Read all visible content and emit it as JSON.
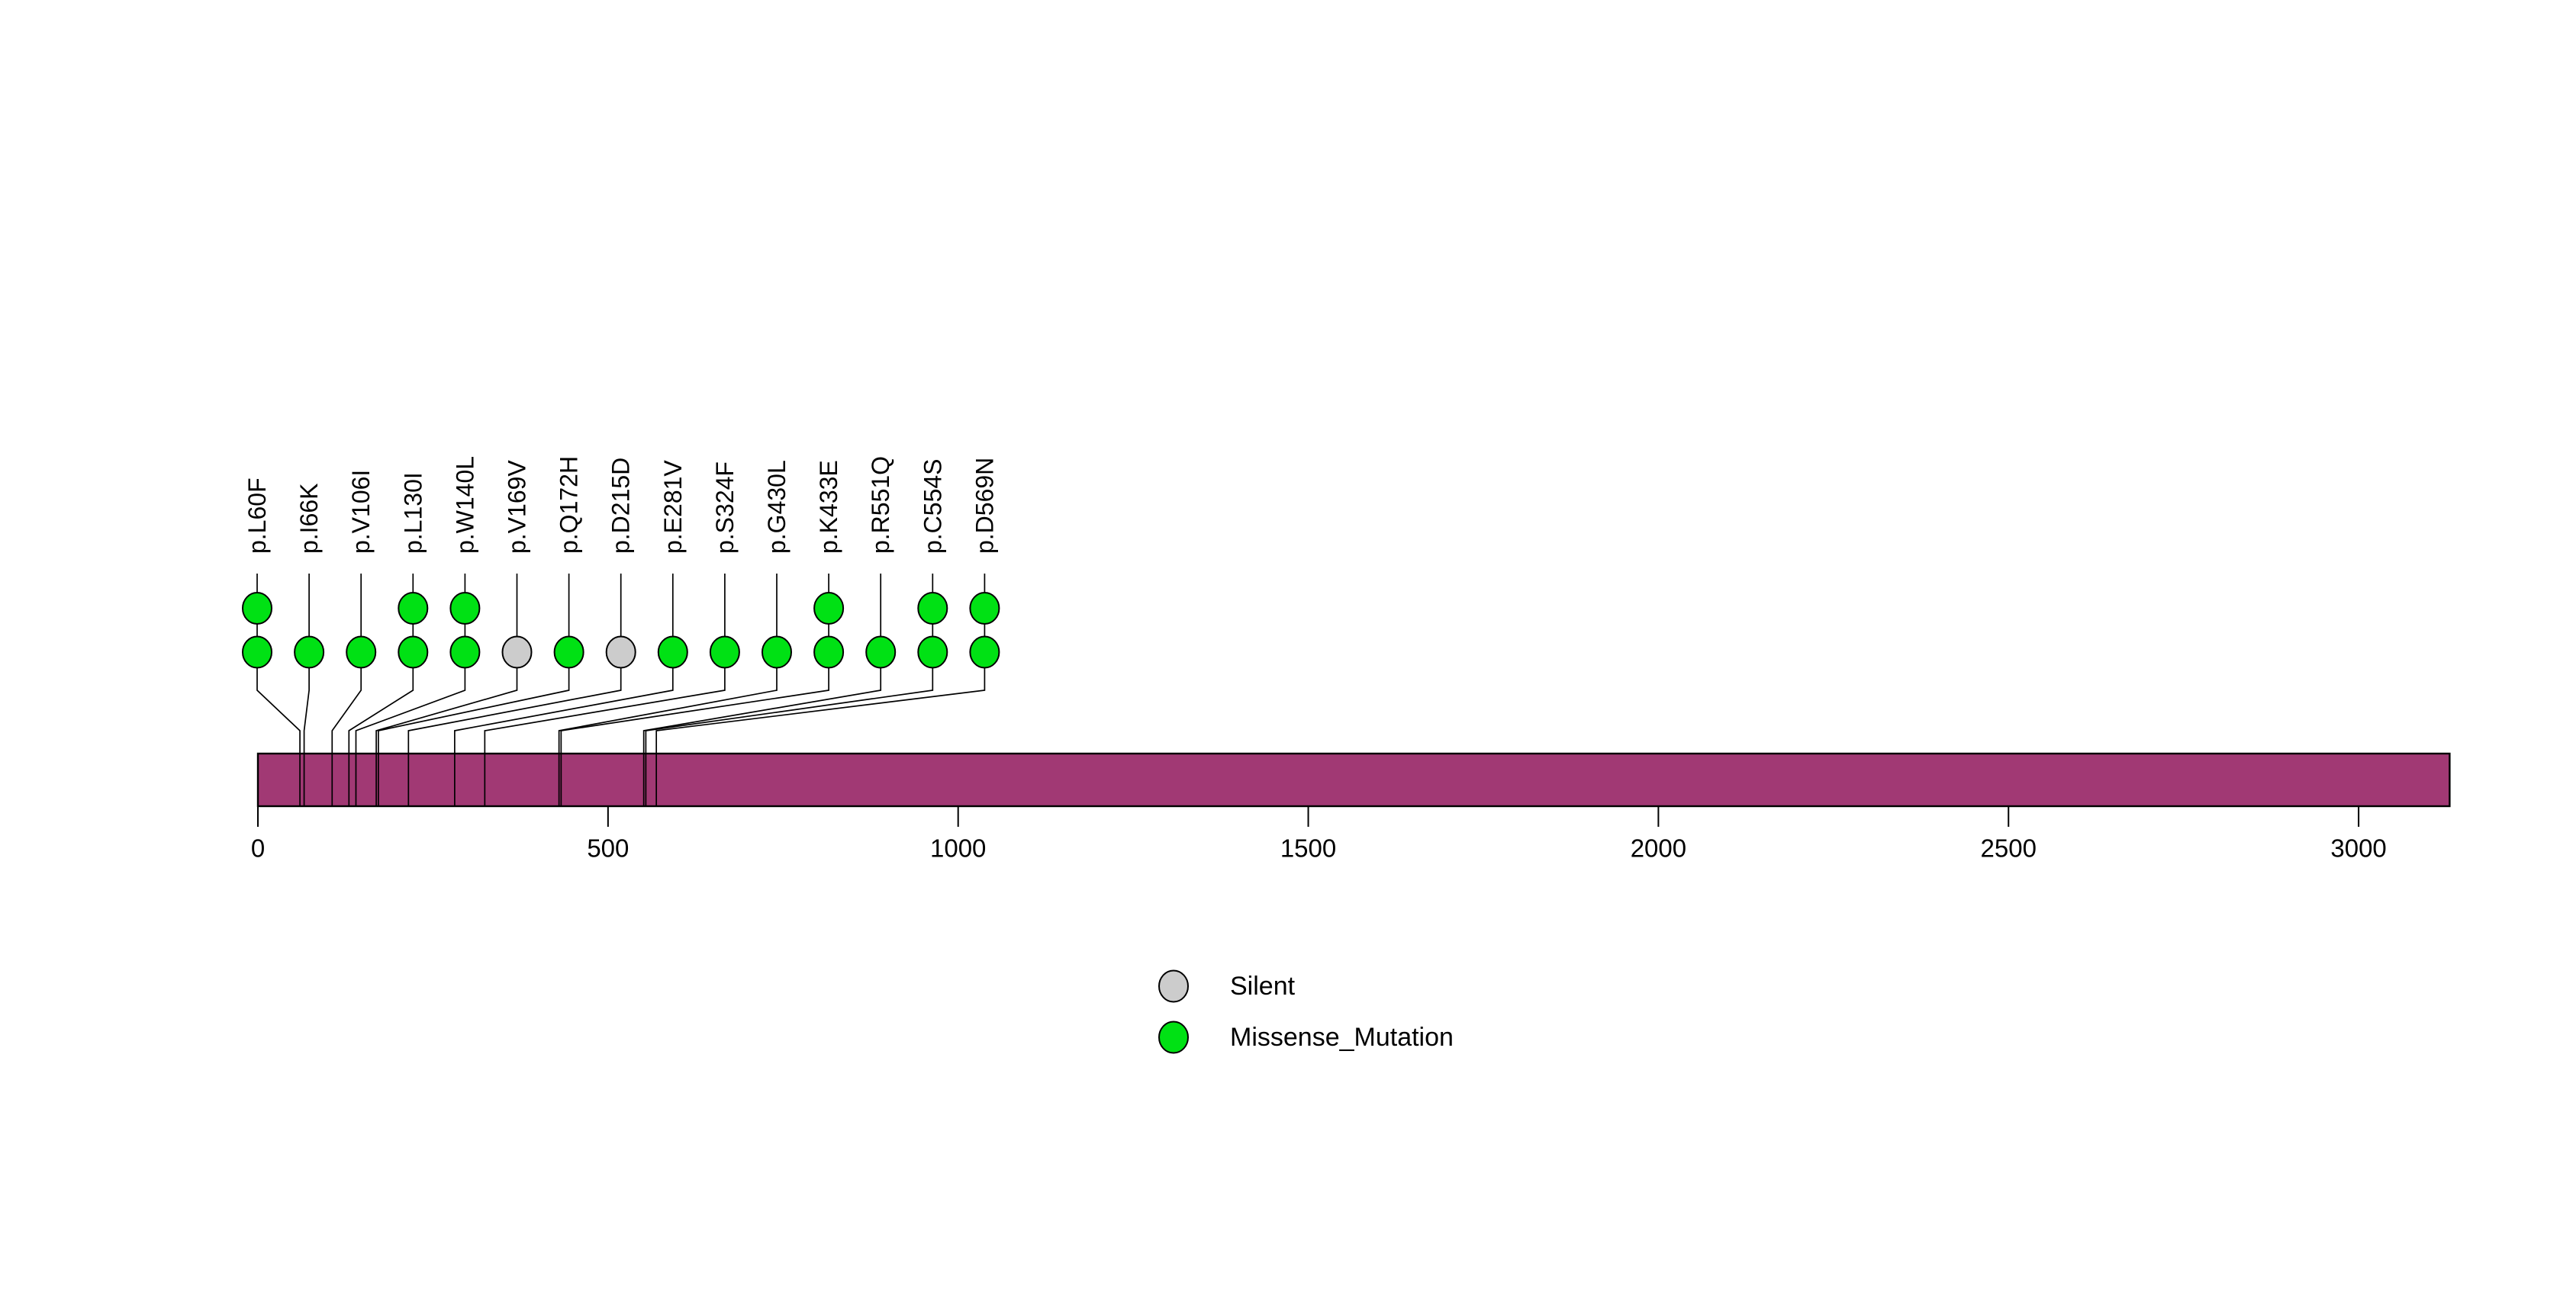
{
  "chart_data": {
    "type": "lollipop",
    "description": "Protein mutation lollipop plot with stacked mutation circles connected to amino-acid positions on a protein bar",
    "protein_length": 3130,
    "axis_ticks": [
      0,
      500,
      1000,
      1500,
      2000,
      2500,
      3000
    ],
    "xlim": [
      0,
      3130
    ],
    "mutations": [
      {
        "label": "p.L60F",
        "position": 60,
        "count": 2,
        "type": "Missense_Mutation"
      },
      {
        "label": "p.I66K",
        "position": 66,
        "count": 1,
        "type": "Missense_Mutation"
      },
      {
        "label": "p.V106I",
        "position": 106,
        "count": 1,
        "type": "Missense_Mutation"
      },
      {
        "label": "p.L130I",
        "position": 130,
        "count": 2,
        "type": "Missense_Mutation"
      },
      {
        "label": "p.W140L",
        "position": 140,
        "count": 2,
        "type": "Missense_Mutation"
      },
      {
        "label": "p.V169V",
        "position": 169,
        "count": 1,
        "type": "Silent"
      },
      {
        "label": "p.Q172H",
        "position": 172,
        "count": 1,
        "type": "Missense_Mutation"
      },
      {
        "label": "p.D215D",
        "position": 215,
        "count": 1,
        "type": "Silent"
      },
      {
        "label": "p.E281V",
        "position": 281,
        "count": 1,
        "type": "Missense_Mutation"
      },
      {
        "label": "p.S324F",
        "position": 324,
        "count": 1,
        "type": "Missense_Mutation"
      },
      {
        "label": "p.G430L",
        "position": 430,
        "count": 1,
        "type": "Missense_Mutation"
      },
      {
        "label": "p.K433E",
        "position": 433,
        "count": 2,
        "type": "Missense_Mutation"
      },
      {
        "label": "p.R551Q",
        "position": 551,
        "count": 1,
        "type": "Missense_Mutation"
      },
      {
        "label": "p.C554S",
        "position": 554,
        "count": 2,
        "type": "Missense_Mutation"
      },
      {
        "label": "p.D569N",
        "position": 569,
        "count": 2,
        "type": "Missense_Mutation"
      }
    ],
    "legend": [
      {
        "label": "Silent",
        "color": "#CCCCCC"
      },
      {
        "label": "Missense_Mutation",
        "color": "#00E114"
      }
    ],
    "colors": {
      "Silent": "#CCCCCC",
      "Missense_Mutation": "#00E114",
      "protein_bar": "#A13974",
      "stroke": "#000000",
      "background": "#FFFFFF"
    }
  }
}
